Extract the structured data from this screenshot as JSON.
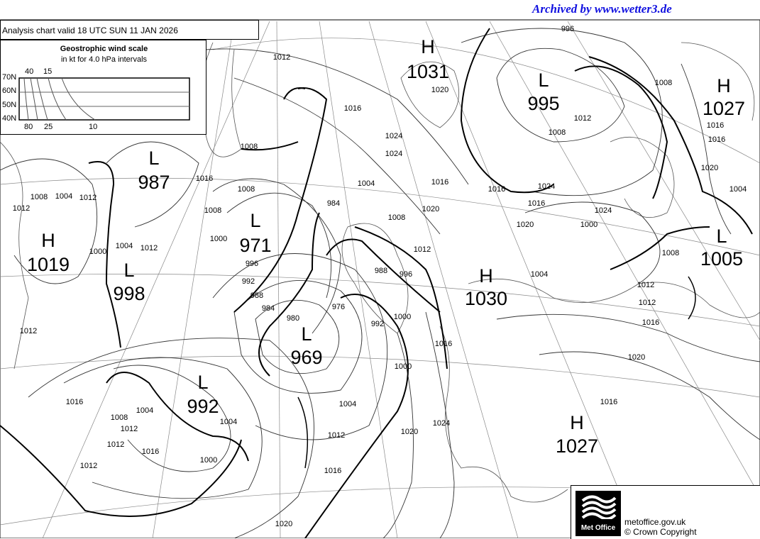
{
  "header": {
    "archive": "Archived by www.wetter3.de",
    "title": "Analysis chart  valid 18 UTC SUN 11  JAN 2026"
  },
  "wind_scale": {
    "title": "Geostrophic wind scale",
    "subtitle": "in kt for 4.0 hPa intervals",
    "latitudes": [
      "70N",
      "60N",
      "50N",
      "40N"
    ],
    "top_labels": [
      "40",
      "15"
    ],
    "bottom_labels": [
      "80",
      "25",
      "10"
    ]
  },
  "pressure_centres": [
    {
      "type": "H",
      "value": "1031"
    },
    {
      "type": "L",
      "value": "995"
    },
    {
      "type": "H",
      "value": "1027"
    },
    {
      "type": "L",
      "value": "987"
    },
    {
      "type": "H",
      "value": "1019"
    },
    {
      "type": "L",
      "value": "971"
    },
    {
      "type": "L",
      "value": "998"
    },
    {
      "type": "H",
      "value": "1030"
    },
    {
      "type": "L",
      "value": "969"
    },
    {
      "type": "L",
      "value": "1005"
    },
    {
      "type": "L",
      "value": "992"
    },
    {
      "type": "H",
      "value": "1027"
    }
  ],
  "isobar_labels": [
    "1012",
    "1012",
    "1016",
    "1020",
    "1024",
    "1016",
    "1008",
    "1004",
    "1008",
    "1012",
    "1016",
    "1012",
    "1004",
    "1008",
    "1000",
    "1004",
    "1008",
    "1012",
    "1016",
    "1004",
    "1000",
    "996",
    "992",
    "988",
    "984",
    "980",
    "976",
    "984",
    "988",
    "992",
    "996",
    "1000",
    "1004",
    "1008",
    "1012",
    "1016",
    "1020",
    "1024",
    "1020",
    "1016",
    "1012",
    "1008",
    "1004",
    "1000",
    "996",
    "1000",
    "1004",
    "1008",
    "1012",
    "1016",
    "1016",
    "1020",
    "1024",
    "1024",
    "1008",
    "1012",
    "1012",
    "1016",
    "1020",
    "1024",
    "1016",
    "1020",
    "1016",
    "1012",
    "1008",
    "1004",
    "1000",
    "1012",
    "1012",
    "1016",
    "1020",
    "1016"
  ],
  "footer": {
    "logo": "Met Office",
    "site": "metoffice.gov.uk",
    "copyright": "© Crown Copyright"
  },
  "colors": {
    "archive_text": "#1010e0",
    "lines": "#000000",
    "grid": "#777777"
  }
}
